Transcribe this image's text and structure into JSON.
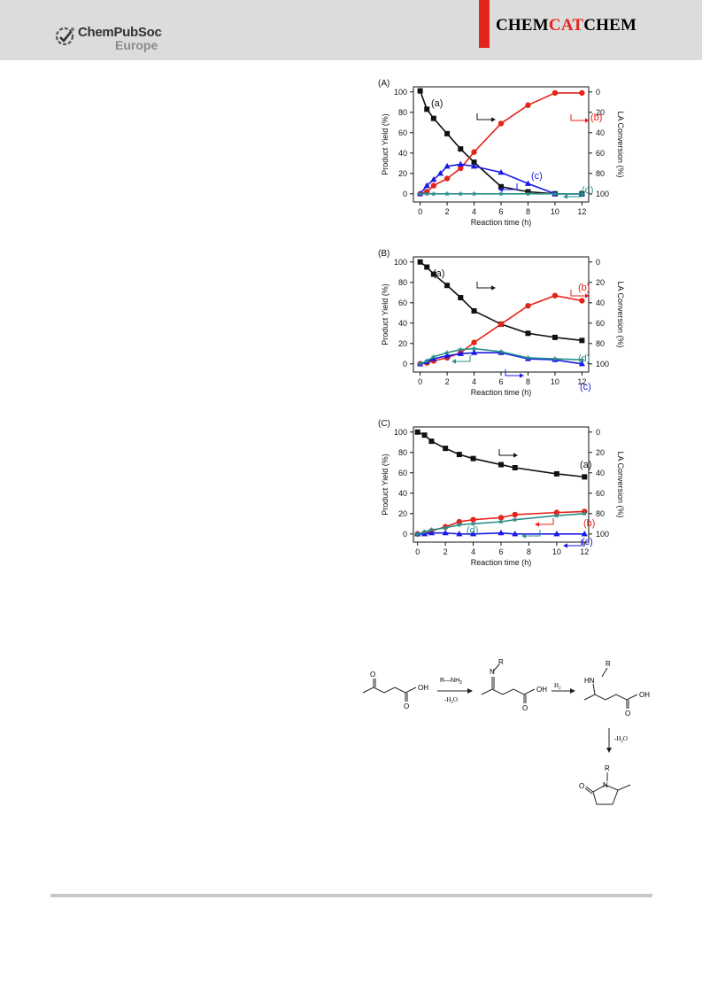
{
  "header": {
    "publisher_name": "ChemPubSoc",
    "publisher_sub": "Europe",
    "journal_part1": "CHEM",
    "journal_part2": "CAT",
    "journal_part3": "CHEM",
    "accent_color": "#e2261d",
    "band_color": "#dcdcdc"
  },
  "chart_data": [
    {
      "type": "line",
      "panel_label": "(A)",
      "xlabel": "Reaction time (h)",
      "ylabel": "Product Yield (%)",
      "y2label": "LA Conversion (%)",
      "xlim": [
        -0.5,
        12.5
      ],
      "ylim": [
        -8,
        105
      ],
      "x_ticks": [
        "0",
        "2",
        "4",
        "6",
        "8",
        "10",
        "12"
      ],
      "y_ticks": [
        "0",
        "20",
        "40",
        "60",
        "80",
        "100"
      ],
      "y2_ticks": [
        "100",
        "80",
        "60",
        "40",
        "20",
        "0"
      ],
      "series": [
        {
          "label": "(a)",
          "color": "#111111",
          "marker": "square",
          "axis": "right",
          "x": [
            0,
            0.5,
            1,
            2,
            3,
            4,
            6,
            8,
            10,
            12
          ],
          "values": [
            101,
            83,
            74,
            59,
            44,
            31,
            7,
            2,
            0,
            0
          ]
        },
        {
          "label": "(b)",
          "color": "#e5231b",
          "marker": "circle",
          "axis": "left",
          "x": [
            0,
            0.5,
            1,
            2,
            3,
            4,
            6,
            8,
            10,
            12
          ],
          "values": [
            0,
            2,
            8,
            15,
            25,
            41,
            69,
            87,
            99,
            99
          ]
        },
        {
          "label": "(c)",
          "color": "#1a1ae6",
          "marker": "triangle",
          "axis": "left",
          "x": [
            0,
            0.5,
            1,
            1.5,
            2,
            3,
            4,
            6,
            8,
            10,
            12
          ],
          "values": [
            0,
            8,
            14,
            20,
            27,
            29,
            27,
            21,
            10,
            0,
            0
          ]
        },
        {
          "label": "(d)",
          "color": "#2a8f8a",
          "marker": "star",
          "axis": "left",
          "x": [
            0,
            0.5,
            1,
            2,
            3,
            4,
            6,
            8,
            10,
            12
          ],
          "values": [
            0,
            0,
            0,
            0,
            0,
            0,
            0,
            0,
            0,
            0
          ]
        }
      ]
    },
    {
      "type": "line",
      "panel_label": "(B)",
      "xlabel": "Reaction time (h)",
      "ylabel": "Product Yield (%)",
      "y2label": "LA Conversion (%)",
      "xlim": [
        -0.5,
        12.5
      ],
      "ylim": [
        -8,
        105
      ],
      "x_ticks": [
        "0",
        "2",
        "4",
        "6",
        "8",
        "10",
        "12"
      ],
      "y_ticks": [
        "0",
        "20",
        "40",
        "60",
        "80",
        "100"
      ],
      "y2_ticks": [
        "100",
        "80",
        "60",
        "40",
        "20",
        "0"
      ],
      "series": [
        {
          "label": "(a)",
          "color": "#111111",
          "marker": "square",
          "axis": "right",
          "x": [
            0,
            0.5,
            1,
            2,
            3,
            4,
            6,
            8,
            10,
            12
          ],
          "values": [
            100,
            95,
            88,
            77,
            65,
            52,
            39,
            30,
            26,
            23
          ]
        },
        {
          "label": "(b)",
          "color": "#e5231b",
          "marker": "circle",
          "axis": "left",
          "x": [
            0,
            0.5,
            1,
            2,
            3,
            4,
            6,
            8,
            10,
            12
          ],
          "values": [
            0,
            1,
            3,
            6,
            11,
            21,
            39,
            57,
            67,
            62
          ]
        },
        {
          "label": "(c)",
          "color": "#1a1ae6",
          "marker": "triangle",
          "axis": "left",
          "x": [
            0,
            0.5,
            1,
            2,
            3,
            4,
            6,
            8,
            10,
            12
          ],
          "values": [
            0,
            2,
            5,
            8,
            10,
            11,
            11,
            5,
            4,
            0
          ]
        },
        {
          "label": "(d)",
          "color": "#2a8f8a",
          "marker": "star",
          "axis": "left",
          "x": [
            0,
            0.5,
            1,
            2,
            3,
            4,
            6,
            8,
            10,
            12
          ],
          "values": [
            0,
            3,
            7,
            11,
            14,
            15,
            12,
            6,
            5,
            4
          ]
        }
      ]
    },
    {
      "type": "line",
      "panel_label": "(C)",
      "xlabel": "Reaction time (h)",
      "ylabel": "Product Yield (%)",
      "y2label": "LA Conversion (%)",
      "xlim": [
        -0.3,
        12.3
      ],
      "ylim": [
        -8,
        105
      ],
      "x_ticks": [
        "0",
        "2",
        "4",
        "6",
        "8",
        "10",
        "12"
      ],
      "y_ticks": [
        "0",
        "20",
        "40",
        "60",
        "80",
        "100"
      ],
      "y2_ticks": [
        "100",
        "80",
        "60",
        "40",
        "20",
        "0"
      ],
      "series": [
        {
          "label": "(a)",
          "color": "#111111",
          "marker": "square",
          "axis": "right",
          "x": [
            0,
            0.5,
            1,
            2,
            3,
            4,
            6,
            7,
            10,
            12
          ],
          "values": [
            100,
            97,
            91,
            84,
            78,
            74,
            68,
            65,
            59,
            56
          ]
        },
        {
          "label": "(b)",
          "color": "#e5231b",
          "marker": "circle",
          "axis": "left",
          "x": [
            0,
            0.5,
            1,
            2,
            3,
            4,
            6,
            7,
            10,
            12
          ],
          "values": [
            0,
            1,
            3,
            7,
            12,
            14,
            16,
            19,
            21,
            22
          ]
        },
        {
          "label": "(c)",
          "color": "#1a1ae6",
          "marker": "triangle",
          "axis": "left",
          "x": [
            0,
            0.5,
            1,
            2,
            3,
            4,
            6,
            7,
            10,
            12
          ],
          "values": [
            0,
            0,
            1,
            1,
            0,
            0,
            1,
            0,
            0,
            0
          ]
        },
        {
          "label": "(d)",
          "color": "#2a8f8a",
          "marker": "star",
          "axis": "left",
          "x": [
            0,
            0.5,
            1,
            2,
            3,
            4,
            6,
            7,
            10,
            12
          ],
          "values": [
            0,
            2,
            4,
            6,
            9,
            10,
            12,
            14,
            18,
            20
          ]
        }
      ]
    }
  ],
  "scheme": {
    "substituent": "R",
    "reagent": "R—NH",
    "reagent_sub": "2",
    "step1_condition": "-H",
    "step2_reagent": "H",
    "step2_sub": "2",
    "step3_condition": "-H",
    "water_sub": "2",
    "water_o": "O",
    "hydroxyl": "OH",
    "oxygen": "O",
    "nitrogen": "N",
    "amine_h": "HN"
  }
}
